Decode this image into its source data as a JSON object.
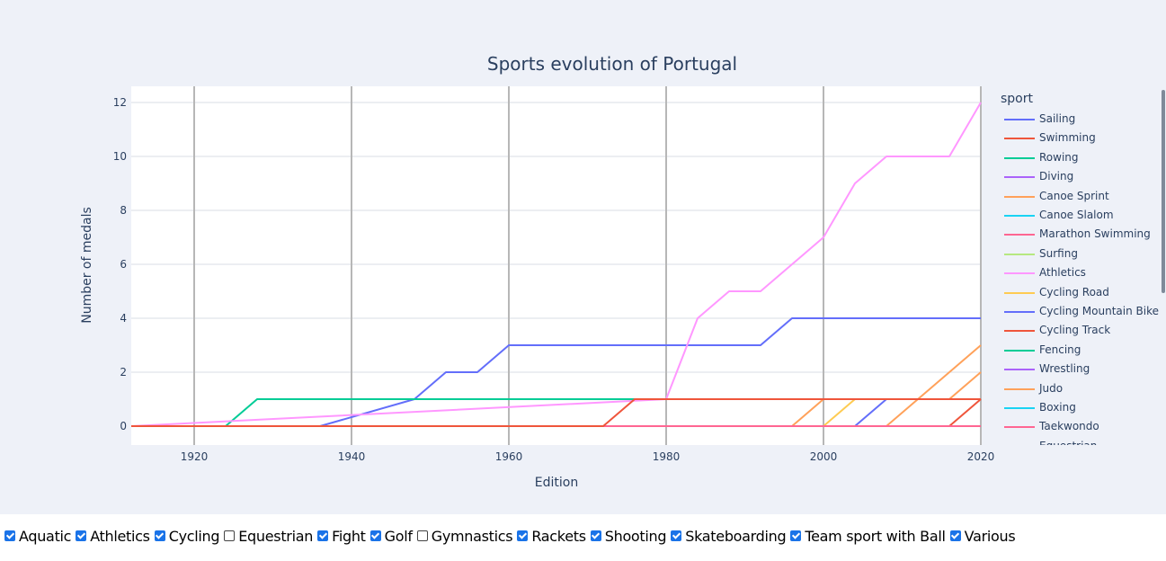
{
  "chart_data": {
    "type": "line",
    "title": "Sports evolution of Portugal",
    "xlabel": "Edition",
    "ylabel": "Number of medals",
    "xlim": [
      1912,
      2020
    ],
    "ylim": [
      -0.7,
      12.6
    ],
    "xticks": [
      1920,
      1940,
      1960,
      1980,
      2000,
      2020
    ],
    "yticks": [
      0,
      2,
      4,
      6,
      8,
      10,
      12
    ],
    "grid": true,
    "legend_title": "sport",
    "legend_position": "right",
    "series": [
      {
        "name": "Sailing",
        "color": "#636efa",
        "x": [
          1912,
          1936,
          1948,
          1952,
          1956,
          1960,
          1992,
          1996,
          2020
        ],
        "y": [
          0,
          0,
          1,
          2,
          2,
          3,
          3,
          4,
          4
        ]
      },
      {
        "name": "Swimming",
        "color": "#ef553b",
        "x": [
          1912,
          2020
        ],
        "y": [
          0,
          0
        ]
      },
      {
        "name": "Rowing",
        "color": "#00cc96",
        "x": [
          1912,
          1924,
          1928,
          2020
        ],
        "y": [
          0,
          0,
          1,
          1
        ]
      },
      {
        "name": "Diving",
        "color": "#ab63fa",
        "x": [
          1912,
          2020
        ],
        "y": [
          0,
          0
        ]
      },
      {
        "name": "Canoe Sprint",
        "color": "#ffa15a",
        "x": [
          1912,
          2008,
          2020
        ],
        "y": [
          0,
          0,
          3
        ]
      },
      {
        "name": "Canoe Slalom",
        "color": "#19d3f3",
        "x": [
          1912,
          2020
        ],
        "y": [
          0,
          0
        ]
      },
      {
        "name": "Marathon Swimming",
        "color": "#ff6692",
        "x": [
          1912,
          2020
        ],
        "y": [
          0,
          0
        ]
      },
      {
        "name": "Surfing",
        "color": "#b6e880",
        "x": [
          1912,
          2020
        ],
        "y": [
          0,
          0
        ]
      },
      {
        "name": "Athletics",
        "color": "#ff97ff",
        "x": [
          1912,
          1980,
          1984,
          1988,
          1992,
          1996,
          2000,
          2004,
          2008,
          2012,
          2016,
          2020
        ],
        "y": [
          0,
          1,
          4,
          5,
          5,
          6,
          7,
          9,
          10,
          10,
          10,
          12
        ]
      },
      {
        "name": "Cycling Road",
        "color": "#fecb52",
        "x": [
          1912,
          2000,
          2004,
          2020
        ],
        "y": [
          0,
          0,
          1,
          1
        ]
      },
      {
        "name": "Cycling Mountain Bike",
        "color": "#636efa",
        "x": [
          1912,
          2004,
          2008,
          2020
        ],
        "y": [
          0,
          0,
          1,
          1
        ]
      },
      {
        "name": "Cycling Track",
        "color": "#ef553b",
        "x": [
          1912,
          2016,
          2020
        ],
        "y": [
          0,
          0,
          1
        ]
      },
      {
        "name": "Fencing",
        "color": "#00cc96",
        "x": [
          1912,
          2020
        ],
        "y": [
          0,
          0
        ]
      },
      {
        "name": "Wrestling",
        "color": "#ab63fa",
        "x": [
          1912,
          2020
        ],
        "y": [
          0,
          0
        ]
      },
      {
        "name": "Judo",
        "color": "#ffa15a",
        "x": [
          1912,
          1996,
          2000,
          2016,
          2020
        ],
        "y": [
          0,
          0,
          1,
          1,
          2
        ]
      },
      {
        "name": "Boxing",
        "color": "#19d3f3",
        "x": [
          1912,
          2020
        ],
        "y": [
          0,
          0
        ]
      },
      {
        "name": "Taekwondo",
        "color": "#ff6692",
        "x": [
          1912,
          2020
        ],
        "y": [
          0,
          0
        ]
      },
      {
        "name": "Equestrian",
        "color": "#ef553b",
        "x": [
          1912,
          1972,
          1976,
          2020
        ],
        "y": [
          0,
          0,
          1,
          1
        ]
      }
    ]
  },
  "filters": [
    {
      "label": "Aquatic",
      "checked": true
    },
    {
      "label": "Athletics",
      "checked": true
    },
    {
      "label": "Cycling",
      "checked": true
    },
    {
      "label": "Equestrian",
      "checked": false
    },
    {
      "label": "Fight",
      "checked": true
    },
    {
      "label": "Golf",
      "checked": true
    },
    {
      "label": "Gymnastics",
      "checked": false
    },
    {
      "label": "Rackets",
      "checked": true
    },
    {
      "label": "Shooting",
      "checked": true
    },
    {
      "label": "Skateboarding",
      "checked": true
    },
    {
      "label": "Team sport with Ball",
      "checked": true
    },
    {
      "label": "Various",
      "checked": true
    }
  ]
}
